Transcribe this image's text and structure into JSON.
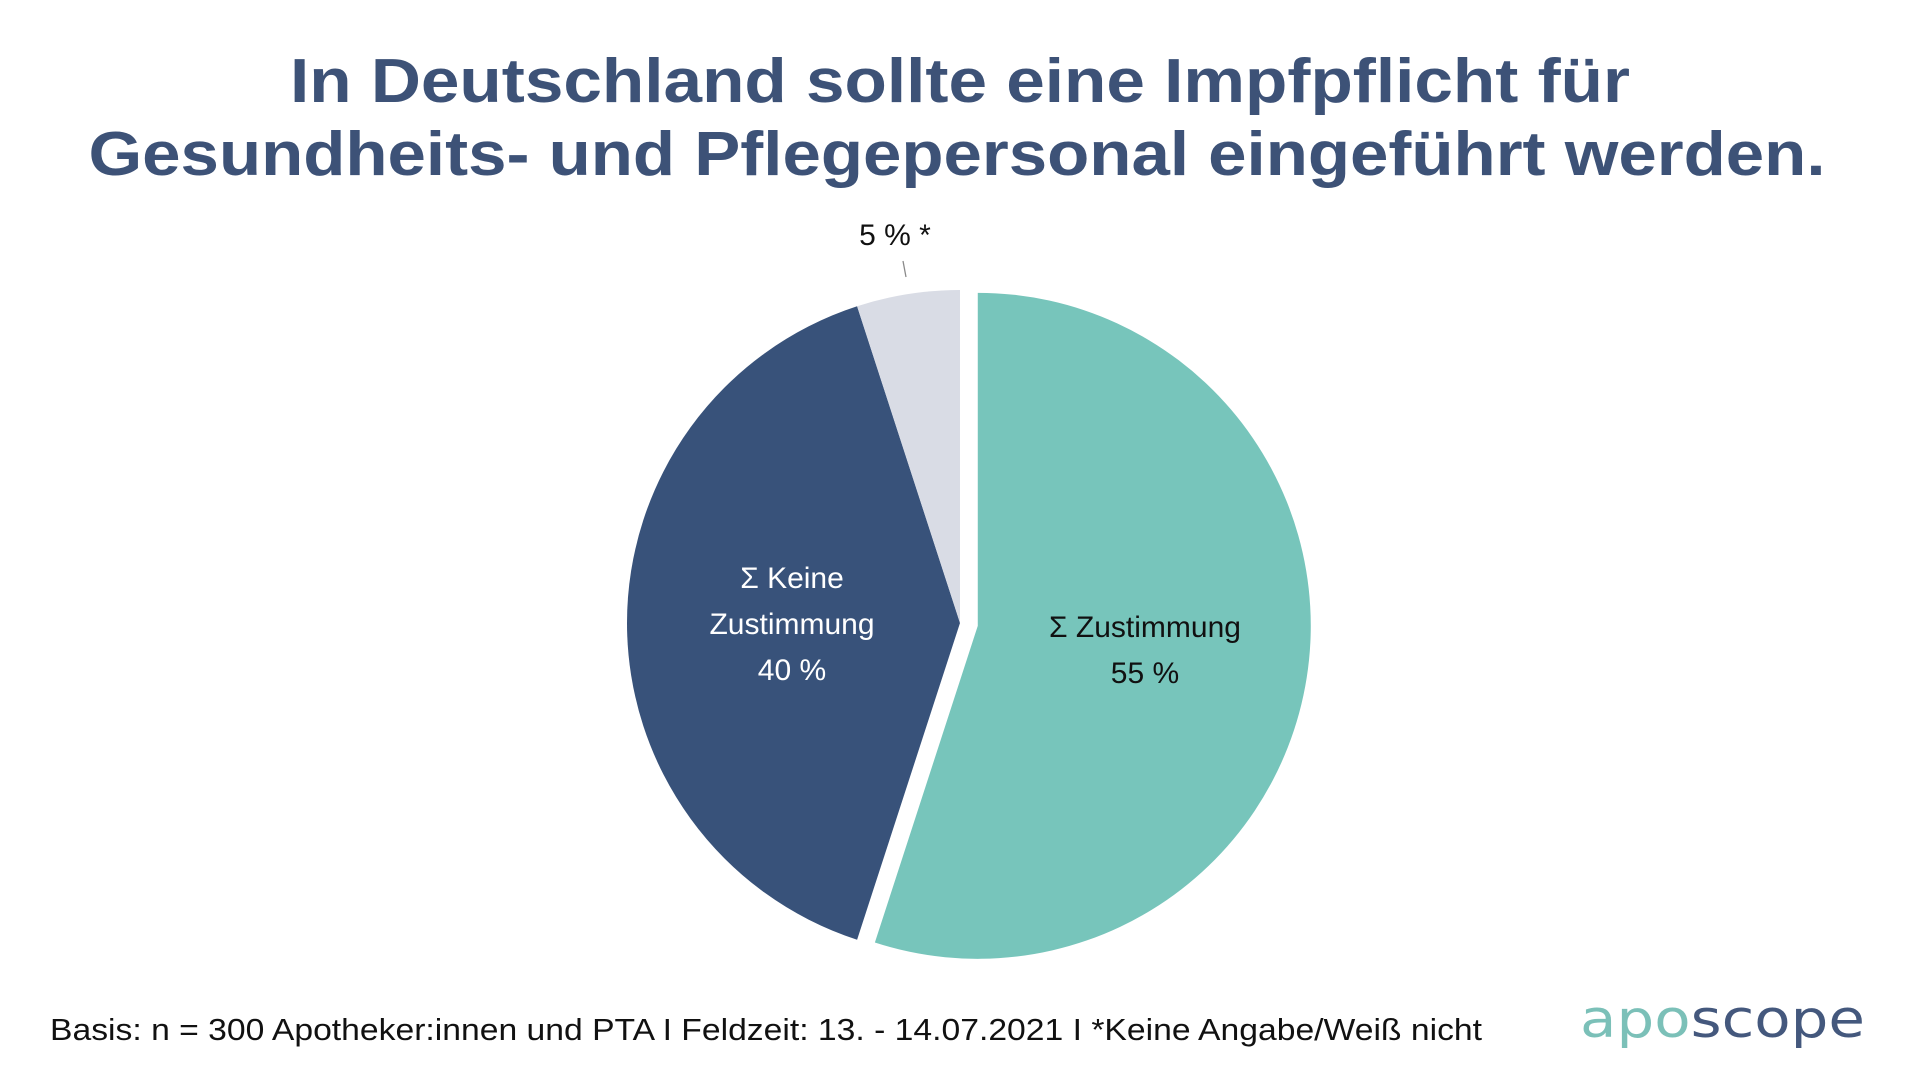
{
  "chart_data": {
    "type": "pie",
    "title": [
      "In Deutschland sollte eine Impfpflicht für",
      "Gesundheits- und Pflegepersonal eingeführt werden."
    ],
    "start_angle": "12 o'clock, clockwise",
    "exploded_slice": "Zustimmung",
    "slices": [
      {
        "key": "zustimmung",
        "name": "Σ Zustimmung",
        "value": 55,
        "value_label": "55 %",
        "label_lines": [
          "Σ Zustimmung",
          "55 %"
        ],
        "color": "#77C5BB",
        "label_color": "#111111"
      },
      {
        "key": "keine",
        "name": "Σ Keine Zustimmung",
        "value": 40,
        "value_label": "40 %",
        "label_lines": [
          "Σ Keine",
          "Zustimmung",
          "40 %"
        ],
        "color": "#38527A",
        "label_color": "#ffffff"
      },
      {
        "key": "keine-angabe",
        "name": "Keine Angabe/Weiß nicht",
        "value": 5,
        "value_label": "5 % *",
        "label_lines": [
          "5 % *"
        ],
        "color": "#D9DCE5",
        "label_color": "#111111"
      }
    ],
    "unit": "%"
  },
  "footnote": "Basis: n = 300 Apotheker:innen und PTA I Feldzeit: 13. - 14.07.2021 I *Keine Angabe/Weiß nicht",
  "logo": {
    "part1": "apo",
    "part2": "scope",
    "color1": "#7BC0B8",
    "color2": "#44587D"
  },
  "colors": {
    "title": "#3D5277",
    "background": "#ffffff"
  }
}
